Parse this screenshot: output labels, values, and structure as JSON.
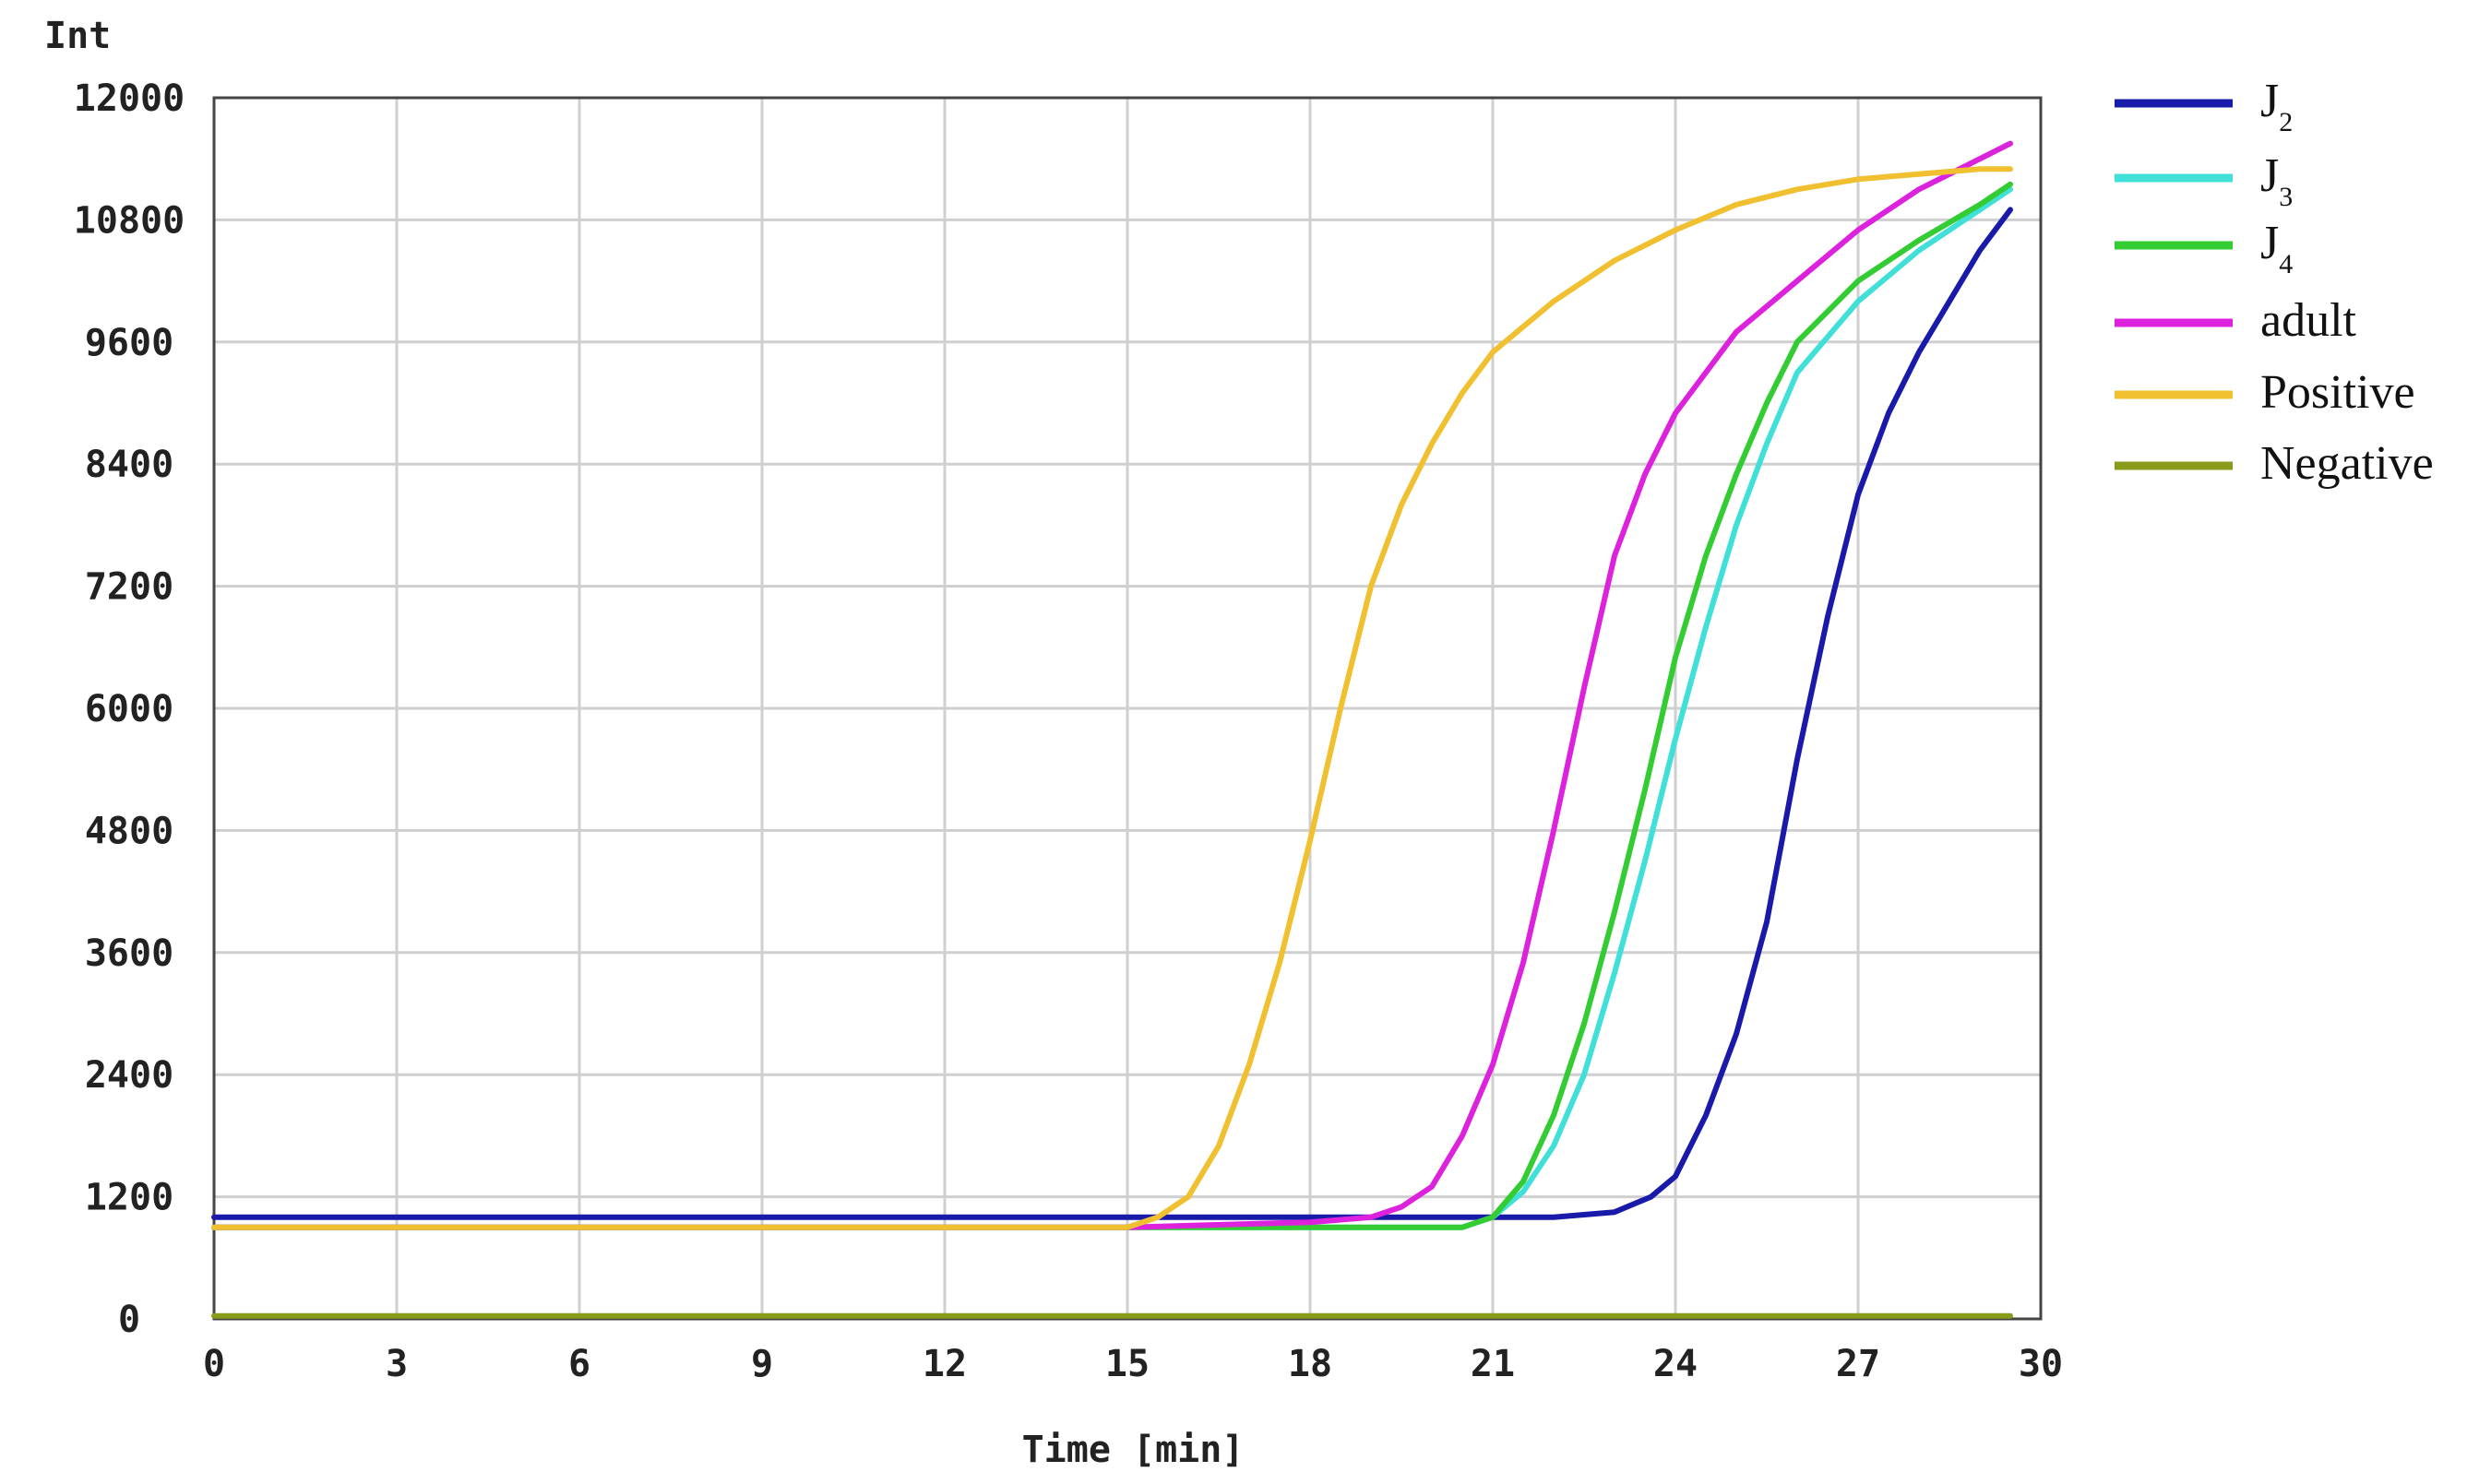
{
  "chart_data": {
    "type": "line",
    "xlabel": "Time [min]",
    "ylabel": "Int",
    "xlim": [
      0,
      30
    ],
    "ylim": [
      0,
      12000
    ],
    "xticks": [
      "0",
      "3",
      "6",
      "9",
      "12",
      "15",
      "18",
      "21",
      "24",
      "27",
      "30"
    ],
    "yticks": [
      "0",
      "1200",
      "2400",
      "3600",
      "4800",
      "6000",
      "7200",
      "8400",
      "9600",
      "10800",
      "12000"
    ],
    "grid": true,
    "legend_position": "right",
    "series": [
      {
        "name": "J",
        "subscript": "2",
        "color": "#1a1aaa",
        "x": [
          0,
          15,
          22,
          23,
          23.6,
          24,
          24.5,
          25,
          25.5,
          26,
          26.5,
          27,
          27.5,
          28,
          28.5,
          29,
          29.5
        ],
        "y": [
          1000,
          1000,
          1000,
          1050,
          1200,
          1400,
          2000,
          2800,
          3900,
          5500,
          6900,
          8100,
          8900,
          9500,
          10000,
          10500,
          10900
        ]
      },
      {
        "name": "J",
        "subscript": "3",
        "color": "#40e0d8",
        "x": [
          0,
          15,
          20.5,
          21,
          21.5,
          22,
          22.5,
          23,
          23.5,
          24,
          24.5,
          25,
          25.5,
          26,
          27,
          28,
          29,
          29.5
        ],
        "y": [
          900,
          900,
          900,
          1000,
          1250,
          1700,
          2400,
          3400,
          4500,
          5700,
          6800,
          7800,
          8600,
          9300,
          10000,
          10500,
          10900,
          11100
        ]
      },
      {
        "name": "J",
        "subscript": "4",
        "color": "#33cc33",
        "x": [
          0,
          15,
          20.5,
          21,
          21.5,
          22,
          22.5,
          23,
          23.5,
          24,
          24.5,
          25,
          25.5,
          26,
          27,
          28,
          29,
          29.5
        ],
        "y": [
          900,
          900,
          900,
          1000,
          1350,
          2000,
          2900,
          4000,
          5200,
          6500,
          7500,
          8300,
          9000,
          9600,
          10200,
          10600,
          10950,
          11150
        ]
      },
      {
        "name": "adult",
        "color": "#dd22dd",
        "x": [
          0,
          15,
          18,
          19,
          19.5,
          20,
          20.5,
          21,
          21.5,
          22,
          22.5,
          23,
          23.5,
          24,
          25,
          26,
          27,
          28,
          29,
          29.5
        ],
        "y": [
          900,
          900,
          950,
          1000,
          1100,
          1300,
          1800,
          2500,
          3500,
          4800,
          6200,
          7500,
          8300,
          8900,
          9700,
          10200,
          10700,
          11100,
          11400,
          11550
        ]
      },
      {
        "name": "Positive",
        "color": "#f0c030",
        "x": [
          0,
          15,
          15.5,
          16,
          16.5,
          17,
          17.5,
          18,
          18.5,
          19,
          19.5,
          20,
          20.5,
          21,
          22,
          23,
          24,
          25,
          26,
          27,
          28,
          29,
          29.5
        ],
        "y": [
          900,
          900,
          1000,
          1200,
          1700,
          2500,
          3500,
          4700,
          6000,
          7200,
          8000,
          8600,
          9100,
          9500,
          10000,
          10400,
          10700,
          10950,
          11100,
          11200,
          11250,
          11300,
          11300
        ]
      },
      {
        "name": "Negative",
        "color": "#8a9a1a",
        "x": [
          0,
          29.5
        ],
        "y": [
          30,
          30
        ]
      }
    ]
  }
}
